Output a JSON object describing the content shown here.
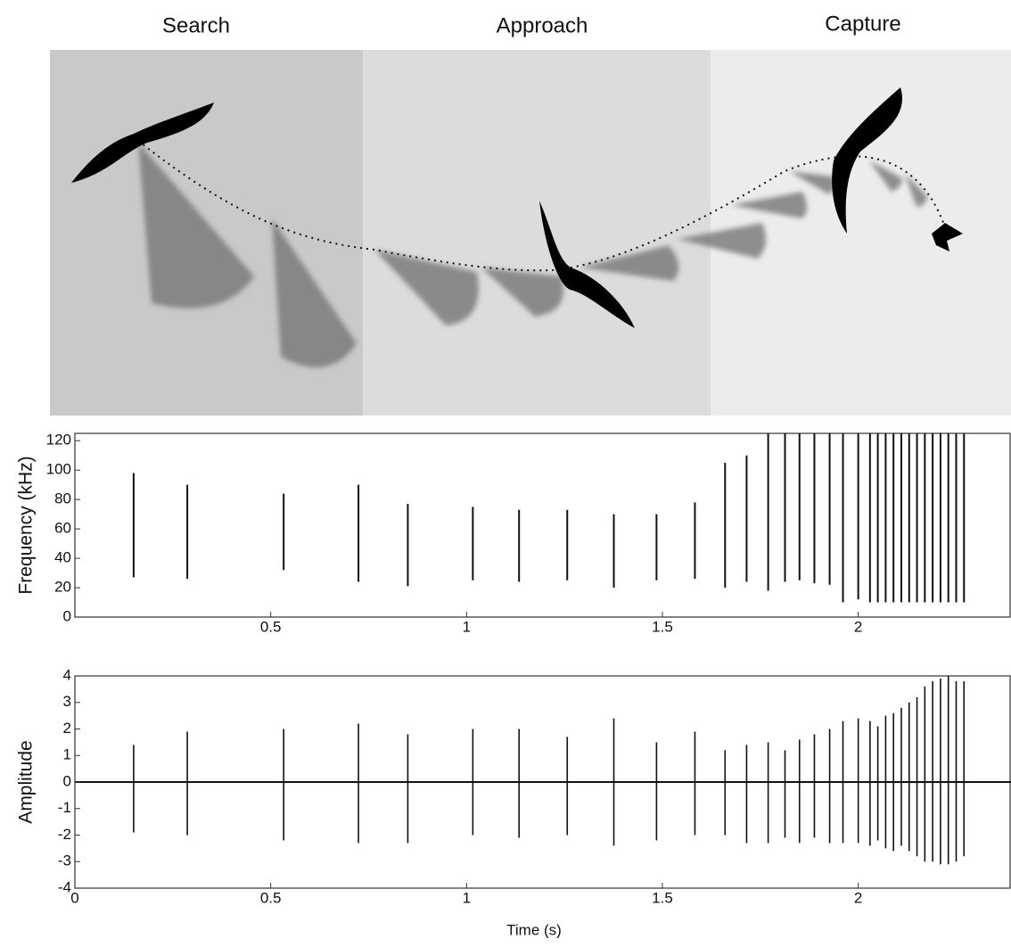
{
  "illustration": {
    "phases": [
      "Search",
      "Approach",
      "Capture"
    ]
  },
  "chart_data": [
    {
      "type": "spectrogram",
      "y_label": "Frequency (kHz)",
      "x": [
        0.15,
        0.287,
        0.533,
        0.724,
        0.85,
        1.016,
        1.134,
        1.257,
        1.376,
        1.485,
        1.583,
        1.66,
        1.715,
        1.77,
        1.813,
        1.85,
        1.888,
        1.927,
        1.961,
        2.0,
        2.03,
        2.05,
        2.07,
        2.09,
        2.11,
        2.13,
        2.15,
        2.17,
        2.19,
        2.21,
        2.23,
        2.25,
        2.27
      ],
      "values": [
        [
          27,
          98
        ],
        [
          26,
          90
        ],
        [
          32,
          84
        ],
        [
          24,
          90
        ],
        [
          21,
          77
        ],
        [
          25,
          75
        ],
        [
          24,
          73
        ],
        [
          25,
          73
        ],
        [
          20,
          70
        ],
        [
          25,
          70
        ],
        [
          26,
          78
        ],
        [
          20,
          105
        ],
        [
          24,
          110
        ],
        [
          18,
          125
        ],
        [
          24,
          125
        ],
        [
          25,
          125
        ],
        [
          23,
          125
        ],
        [
          22,
          125
        ],
        [
          10,
          125
        ],
        [
          12,
          125
        ],
        [
          10,
          125
        ],
        [
          10,
          125
        ],
        [
          10,
          125
        ],
        [
          10,
          125
        ],
        [
          10,
          125
        ],
        [
          10,
          125
        ],
        [
          10,
          125
        ],
        [
          10,
          125
        ],
        [
          10,
          125
        ],
        [
          10,
          125
        ],
        [
          10,
          125
        ],
        [
          10,
          125
        ],
        [
          10,
          125
        ]
      ],
      "xlim": [
        0,
        2.39
      ],
      "ylim": [
        0,
        125
      ],
      "xticks": [
        0.5,
        1,
        1.5,
        2
      ],
      "yticks": [
        0,
        20,
        40,
        60,
        80,
        100,
        120
      ]
    },
    {
      "type": "waveform",
      "y_label": "Amplitude",
      "x_label": "Time (s)",
      "x": [
        0.15,
        0.287,
        0.533,
        0.724,
        0.85,
        1.016,
        1.134,
        1.257,
        1.376,
        1.485,
        1.583,
        1.66,
        1.715,
        1.77,
        1.813,
        1.85,
        1.888,
        1.927,
        1.961,
        2.0,
        2.03,
        2.05,
        2.07,
        2.09,
        2.11,
        2.13,
        2.15,
        2.17,
        2.19,
        2.21,
        2.23,
        2.25,
        2.27
      ],
      "values": [
        [
          -1.9,
          1.4
        ],
        [
          -2.0,
          1.9
        ],
        [
          -2.2,
          2.0
        ],
        [
          -2.3,
          2.2
        ],
        [
          -2.3,
          1.8
        ],
        [
          -2.0,
          2.0
        ],
        [
          -2.1,
          2.0
        ],
        [
          -2.0,
          1.7
        ],
        [
          -2.4,
          2.4
        ],
        [
          -2.2,
          1.5
        ],
        [
          -2.0,
          1.9
        ],
        [
          -2.0,
          1.2
        ],
        [
          -2.3,
          1.4
        ],
        [
          -2.3,
          1.5
        ],
        [
          -2.1,
          1.2
        ],
        [
          -2.3,
          1.6
        ],
        [
          -2.1,
          1.8
        ],
        [
          -2.3,
          2.0
        ],
        [
          -2.3,
          2.3
        ],
        [
          -2.3,
          2.4
        ],
        [
          -2.4,
          2.3
        ],
        [
          -2.2,
          2.1
        ],
        [
          -2.5,
          2.5
        ],
        [
          -2.6,
          2.6
        ],
        [
          -2.4,
          2.8
        ],
        [
          -2.6,
          3.0
        ],
        [
          -2.8,
          3.2
        ],
        [
          -3.0,
          3.6
        ],
        [
          -3.0,
          3.8
        ],
        [
          -3.1,
          3.9
        ],
        [
          -3.1,
          4.0
        ],
        [
          -3.0,
          3.8
        ],
        [
          -2.8,
          3.8
        ]
      ],
      "xlim": [
        0,
        2.39
      ],
      "ylim": [
        -4,
        4
      ],
      "xticks": [
        0,
        0.5,
        1,
        1.5,
        2
      ],
      "yticks": [
        -4,
        -3,
        -2,
        -1,
        0,
        1,
        2,
        3,
        4
      ]
    }
  ]
}
